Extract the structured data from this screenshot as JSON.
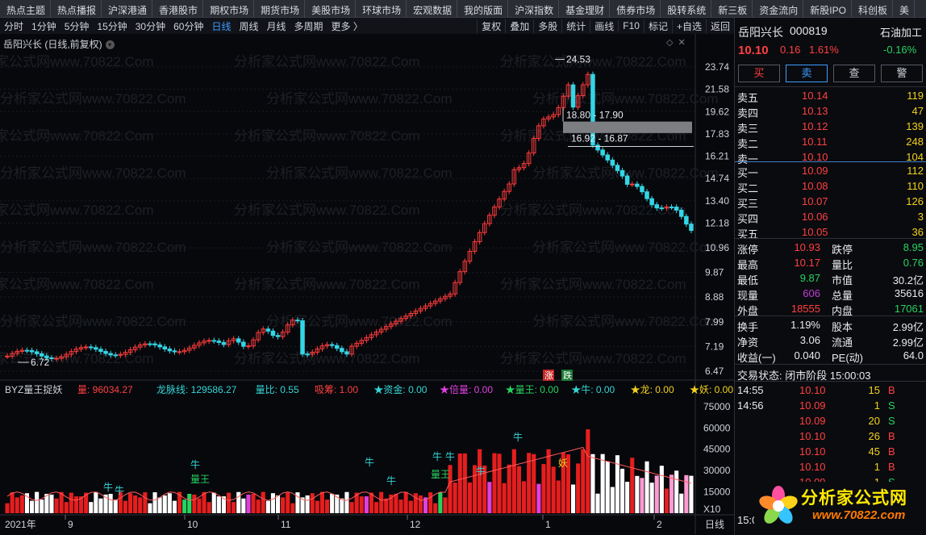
{
  "topnav": [
    "热点主题",
    "热点播报",
    "沪深港通",
    "香港股市",
    "期权市场",
    "期货市场",
    "美股市场",
    "环球市场",
    "宏观数据",
    "我的版面",
    "沪深指数",
    "基金理财",
    "债券市场",
    "股转系统",
    "新三板",
    "资金流向",
    "新股IPO",
    "科创板",
    "美"
  ],
  "toolbar": {
    "timeframes": [
      "分时",
      "1分钟",
      "5分钟",
      "15分钟",
      "30分钟",
      "60分钟",
      "日线",
      "周线",
      "月线",
      "多周期",
      "更多 〉"
    ],
    "active_index": 6,
    "tools": [
      "复权",
      "叠加",
      "多股",
      "统计",
      "画线",
      "F10",
      "标记",
      "+自选",
      "返回"
    ]
  },
  "chart": {
    "title": "岳阳兴长 (日线,前复权)",
    "watermark": "分析家公式网www.70822.Com",
    "price_axis": [
      "23.74",
      "21.58",
      "19.62",
      "17.83",
      "16.21",
      "14.74",
      "13.40",
      "12.18",
      "10.96",
      "9.87",
      "8.88",
      "7.99",
      "7.19",
      "6.47"
    ],
    "high_label": "24.53",
    "low_label": "6.72",
    "zone1_label": "18.80 - 17.90",
    "zone2_label": "16.92 - 16.87",
    "limit_up_badge": "涨",
    "limit_down_badge": "跌",
    "indicator": {
      "name": "BYZ量王捉妖",
      "items": [
        {
          "label": "量:",
          "value": "96034.27",
          "color": "#ff4040"
        },
        {
          "label": "龙脉线:",
          "value": "129586.27",
          "color": "#33d6d6"
        },
        {
          "label": "量比:",
          "value": "0.55",
          "color": "#33d6d6"
        },
        {
          "label": "吸筹:",
          "value": "1.00",
          "color": "#ff4040"
        },
        {
          "label": "★资金:",
          "value": "0.00",
          "color": "#33d6d6"
        },
        {
          "label": "★倍量:",
          "value": "0.00",
          "color": "#e040e0"
        },
        {
          "label": "★量王:",
          "value": "0.00",
          "color": "#27d35f"
        },
        {
          "label": "★牛:",
          "value": "0.00",
          "color": "#33d6d6"
        },
        {
          "label": "★龙:",
          "value": "0.00",
          "color": "#f2d21a"
        },
        {
          "label": "★妖:",
          "value": "0.00",
          "color": "#f2d21a"
        }
      ],
      "axis": [
        "75000",
        "60000",
        "45000",
        "30000",
        "15000",
        "X10"
      ],
      "labels_niu": "牛",
      "label_liangwang": "量王",
      "label_yao": "妖"
    },
    "date_axis": [
      "2021年",
      "9",
      "10",
      "11",
      "12",
      "1",
      "2",
      "日线"
    ]
  },
  "quote": {
    "name": "岳阳兴长",
    "code": "000819",
    "sector": "石油加工",
    "price": "10.10",
    "change": "0.16",
    "change_pct": "1.61%",
    "sector_pct": "-0.16%",
    "buttons": [
      "买",
      "卖",
      "查",
      "警"
    ],
    "asks": [
      {
        "label": "卖五",
        "price": "10.14",
        "vol": "119"
      },
      {
        "label": "卖四",
        "price": "10.13",
        "vol": "47"
      },
      {
        "label": "卖三",
        "price": "10.12",
        "vol": "139"
      },
      {
        "label": "卖二",
        "price": "10.11",
        "vol": "248"
      },
      {
        "label": "卖一",
        "price": "10.10",
        "vol": "104"
      }
    ],
    "bids": [
      {
        "label": "买一",
        "price": "10.09",
        "vol": "112"
      },
      {
        "label": "买二",
        "price": "10.08",
        "vol": "110"
      },
      {
        "label": "买三",
        "price": "10.07",
        "vol": "126"
      },
      {
        "label": "买四",
        "price": "10.06",
        "vol": "3"
      },
      {
        "label": "买五",
        "price": "10.05",
        "vol": "36"
      }
    ],
    "stats": [
      {
        "l1": "涨停",
        "v1": "10.93",
        "c1": "red",
        "l2": "跌停",
        "v2": "8.95",
        "c2": "green"
      },
      {
        "l1": "最高",
        "v1": "10.17",
        "c1": "red",
        "l2": "量比",
        "v2": "0.76",
        "c2": "green"
      },
      {
        "l1": "最低",
        "v1": "9.87",
        "c1": "green",
        "l2": "市值",
        "v2": "30.2亿",
        "c2": "white"
      },
      {
        "l1": "现量",
        "v1": "606",
        "c1": "purple",
        "l2": "总量",
        "v2": "35616",
        "c2": "white"
      },
      {
        "l1": "外盘",
        "v1": "18555",
        "c1": "red",
        "l2": "内盘",
        "v2": "17061",
        "c2": "green"
      }
    ],
    "stats2": [
      {
        "l1": "换手",
        "v1": "1.19%",
        "l2": "股本",
        "v2": "2.99亿"
      },
      {
        "l1": "净资",
        "v1": "3.06",
        "l2": "流通",
        "v2": "2.99亿"
      },
      {
        "l1": "收益(一)",
        "v1": "0.040",
        "l2": "PE(动)",
        "v2": "64.0"
      }
    ],
    "status": "交易状态: 闭市阶段 15:00:03",
    "ticks": [
      {
        "time": "14:55",
        "price": "10.10",
        "vol": "15",
        "side": "B"
      },
      {
        "time": "14:56",
        "price": "10.09",
        "vol": "1",
        "side": "S"
      },
      {
        "time": "",
        "price": "10.09",
        "vol": "20",
        "side": "S"
      },
      {
        "time": "",
        "price": "10.10",
        "vol": "26",
        "side": "B"
      },
      {
        "time": "",
        "price": "10.10",
        "vol": "45",
        "side": "B"
      },
      {
        "time": "",
        "price": "10.10",
        "vol": "1",
        "side": "B"
      },
      {
        "time": "",
        "price": "10.09",
        "vol": "1",
        "side": "S"
      }
    ],
    "bottom_time": "15:0"
  },
  "logo": {
    "text": "分析家公式网",
    "url": "www.70822.com"
  }
}
